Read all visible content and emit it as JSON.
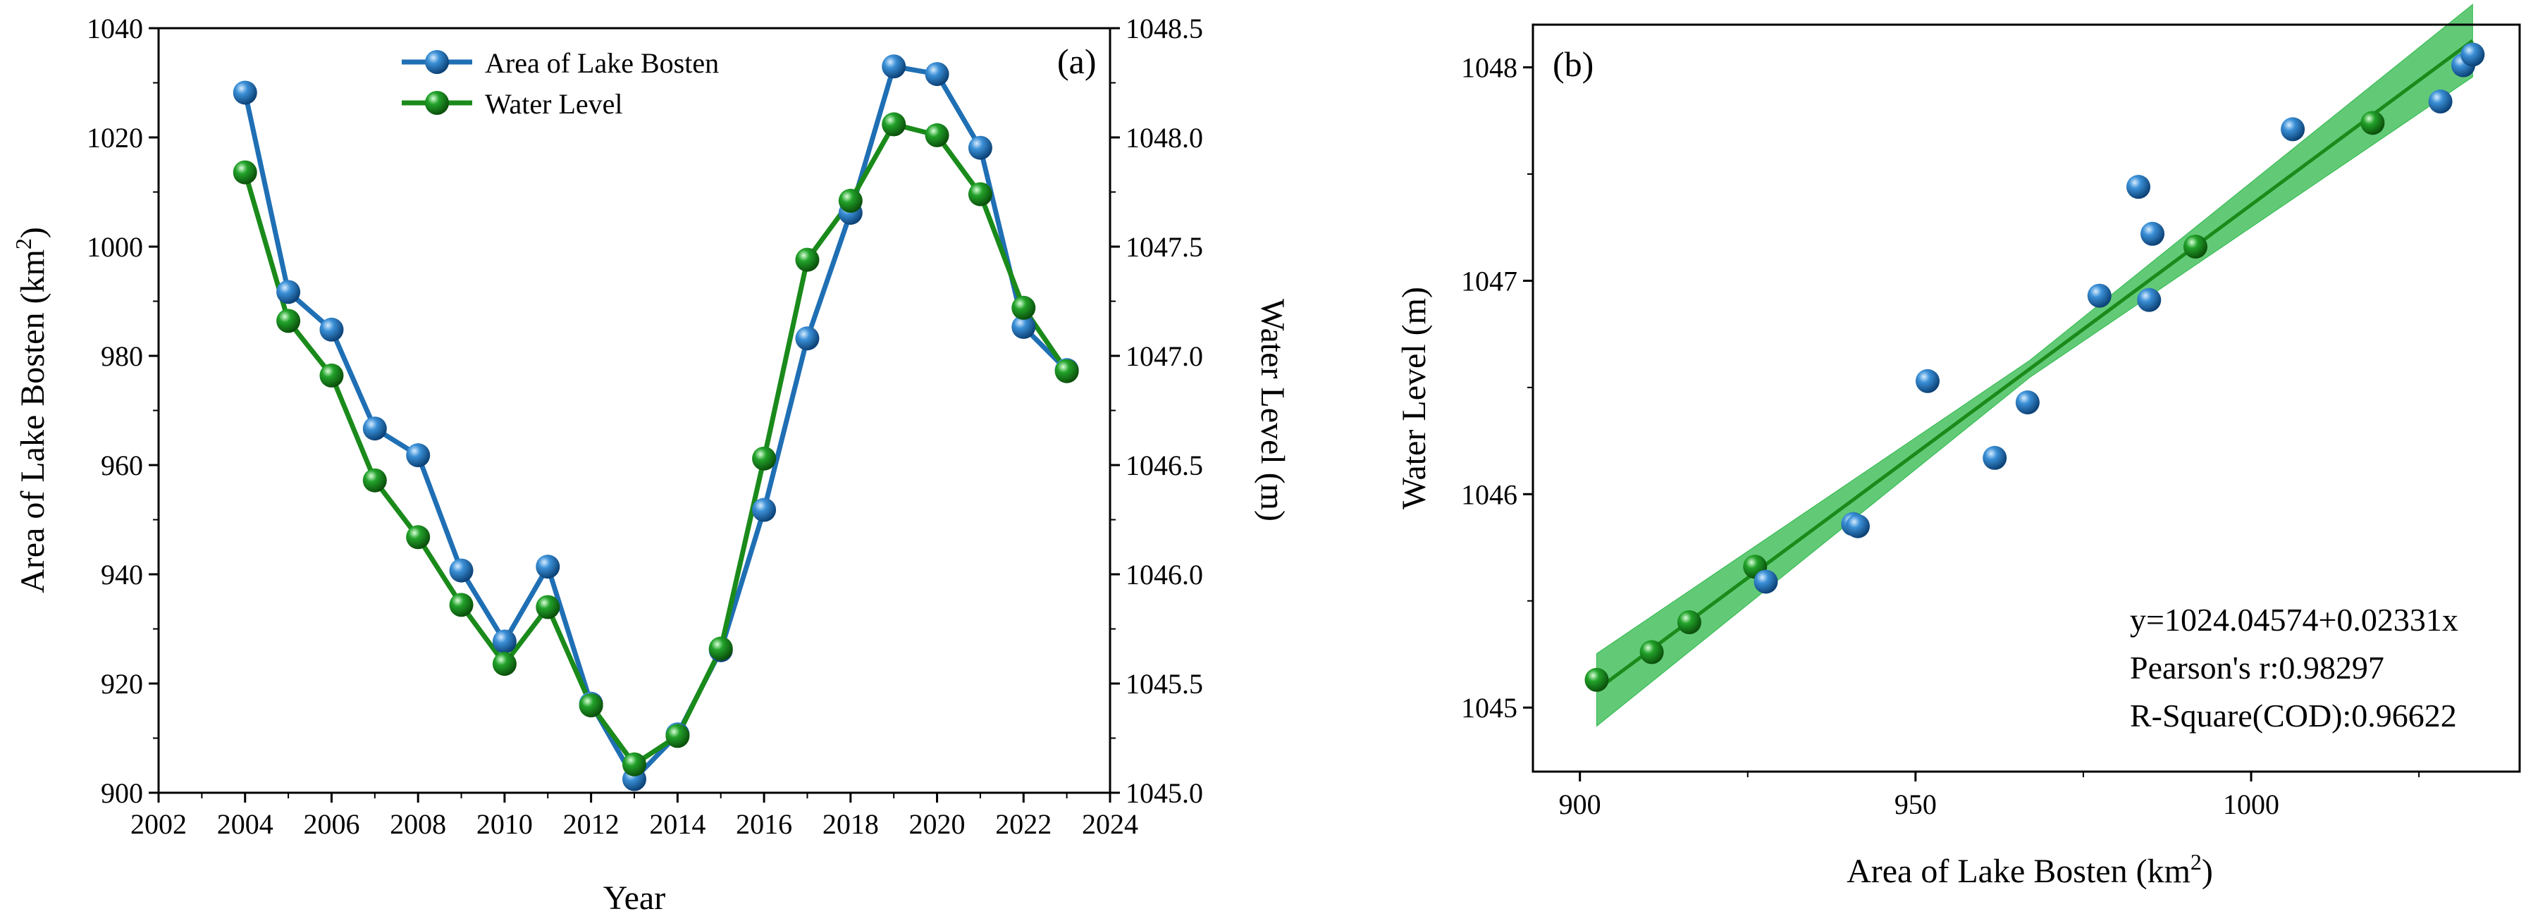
{
  "chart_data": [
    {
      "panel_label": "(a)",
      "type": "line",
      "xlabel": "Year",
      "ylabel_left": "Area of Lake Bosten (km",
      "ylabel_left_sup": "2",
      "ylabel_left_suffix": ")",
      "ylabel_right": "Water Level (m)",
      "xlim": [
        2002,
        2024
      ],
      "xticks": [
        "2002",
        "2004",
        "2006",
        "2008",
        "2010",
        "2012",
        "2014",
        "2016",
        "2018",
        "2020",
        "2022",
        "2024"
      ],
      "ylim_left": [
        900,
        1040
      ],
      "yticks_left": [
        "900",
        "920",
        "940",
        "960",
        "980",
        "1000",
        "1020",
        "1040"
      ],
      "ylim_right": [
        1045.0,
        1048.5
      ],
      "yticks_right": [
        "1045.0",
        "1045.5",
        "1046.0",
        "1046.5",
        "1047.0",
        "1047.5",
        "1048.0",
        "1048.5"
      ],
      "x": [
        2004,
        2005,
        2006,
        2007,
        2008,
        2009,
        2010,
        2011,
        2012,
        2013,
        2014,
        2015,
        2016,
        2017,
        2018,
        2019,
        2020,
        2021,
        2022,
        2023
      ],
      "series": [
        {
          "name": "Area of Lake Bosten",
          "axis": "left",
          "color": "#1f6fb4",
          "values": [
            1028.2,
            991.7,
            984.8,
            966.7,
            961.8,
            940.7,
            927.7,
            941.4,
            916.3,
            902.5,
            910.7,
            926.1,
            951.8,
            983.2,
            1006.2,
            1033.0,
            1031.6,
            1018.1,
            985.3,
            977.4
          ]
        },
        {
          "name": "Water Level",
          "axis": "right",
          "color": "#1a8a1a",
          "values": [
            1047.84,
            1047.16,
            1046.91,
            1046.43,
            1046.17,
            1045.86,
            1045.59,
            1045.85,
            1045.4,
            1045.13,
            1045.26,
            1045.66,
            1046.53,
            1047.44,
            1047.71,
            1048.06,
            1048.01,
            1047.74,
            1047.22,
            1046.93
          ]
        }
      ],
      "legend": "top-center"
    },
    {
      "panel_label": "(b)",
      "type": "scatter",
      "xlabel": "Area of Lake Bosten (km",
      "xlabel_sup": "2",
      "xlabel_suffix": ")",
      "ylabel": "Water Level (m)",
      "xlim": [
        893,
        1040
      ],
      "xticks": [
        "900",
        "950",
        "1000"
      ],
      "ylim": [
        1044.7,
        1048.2
      ],
      "yticks": [
        "1045",
        "1046",
        "1047",
        "1048"
      ],
      "point_color": "#1f6fb4",
      "fit_color": "#1a8a1a",
      "band_color": "#2db84a",
      "points": [
        {
          "x": 902.5,
          "y": 1045.13
        },
        {
          "x": 910.7,
          "y": 1045.26
        },
        {
          "x": 916.3,
          "y": 1045.4
        },
        {
          "x": 926.1,
          "y": 1045.66
        },
        {
          "x": 927.7,
          "y": 1045.59
        },
        {
          "x": 940.7,
          "y": 1045.86
        },
        {
          "x": 941.4,
          "y": 1045.85
        },
        {
          "x": 951.8,
          "y": 1046.53
        },
        {
          "x": 961.8,
          "y": 1046.17
        },
        {
          "x": 966.7,
          "y": 1046.43
        },
        {
          "x": 977.4,
          "y": 1046.93
        },
        {
          "x": 983.2,
          "y": 1047.44
        },
        {
          "x": 984.8,
          "y": 1046.91
        },
        {
          "x": 985.3,
          "y": 1047.22
        },
        {
          "x": 991.7,
          "y": 1047.16
        },
        {
          "x": 1006.2,
          "y": 1047.71
        },
        {
          "x": 1018.1,
          "y": 1047.74
        },
        {
          "x": 1028.2,
          "y": 1047.84
        },
        {
          "x": 1031.6,
          "y": 1048.01
        },
        {
          "x": 1033.0,
          "y": 1048.06
        }
      ],
      "fit": {
        "intercept": 1024.04574,
        "slope": 0.02331,
        "x_range": [
          902.5,
          1033.0
        ]
      },
      "band": {
        "x": [
          902.5,
          967.0,
          1033.0
        ],
        "half_width": [
          0.17,
          0.04,
          0.17
        ]
      },
      "annotations": [
        "y=1024.04574+0.02331x",
        "Pearson's r:0.98297",
        "R-Square(COD):0.96622"
      ]
    }
  ]
}
